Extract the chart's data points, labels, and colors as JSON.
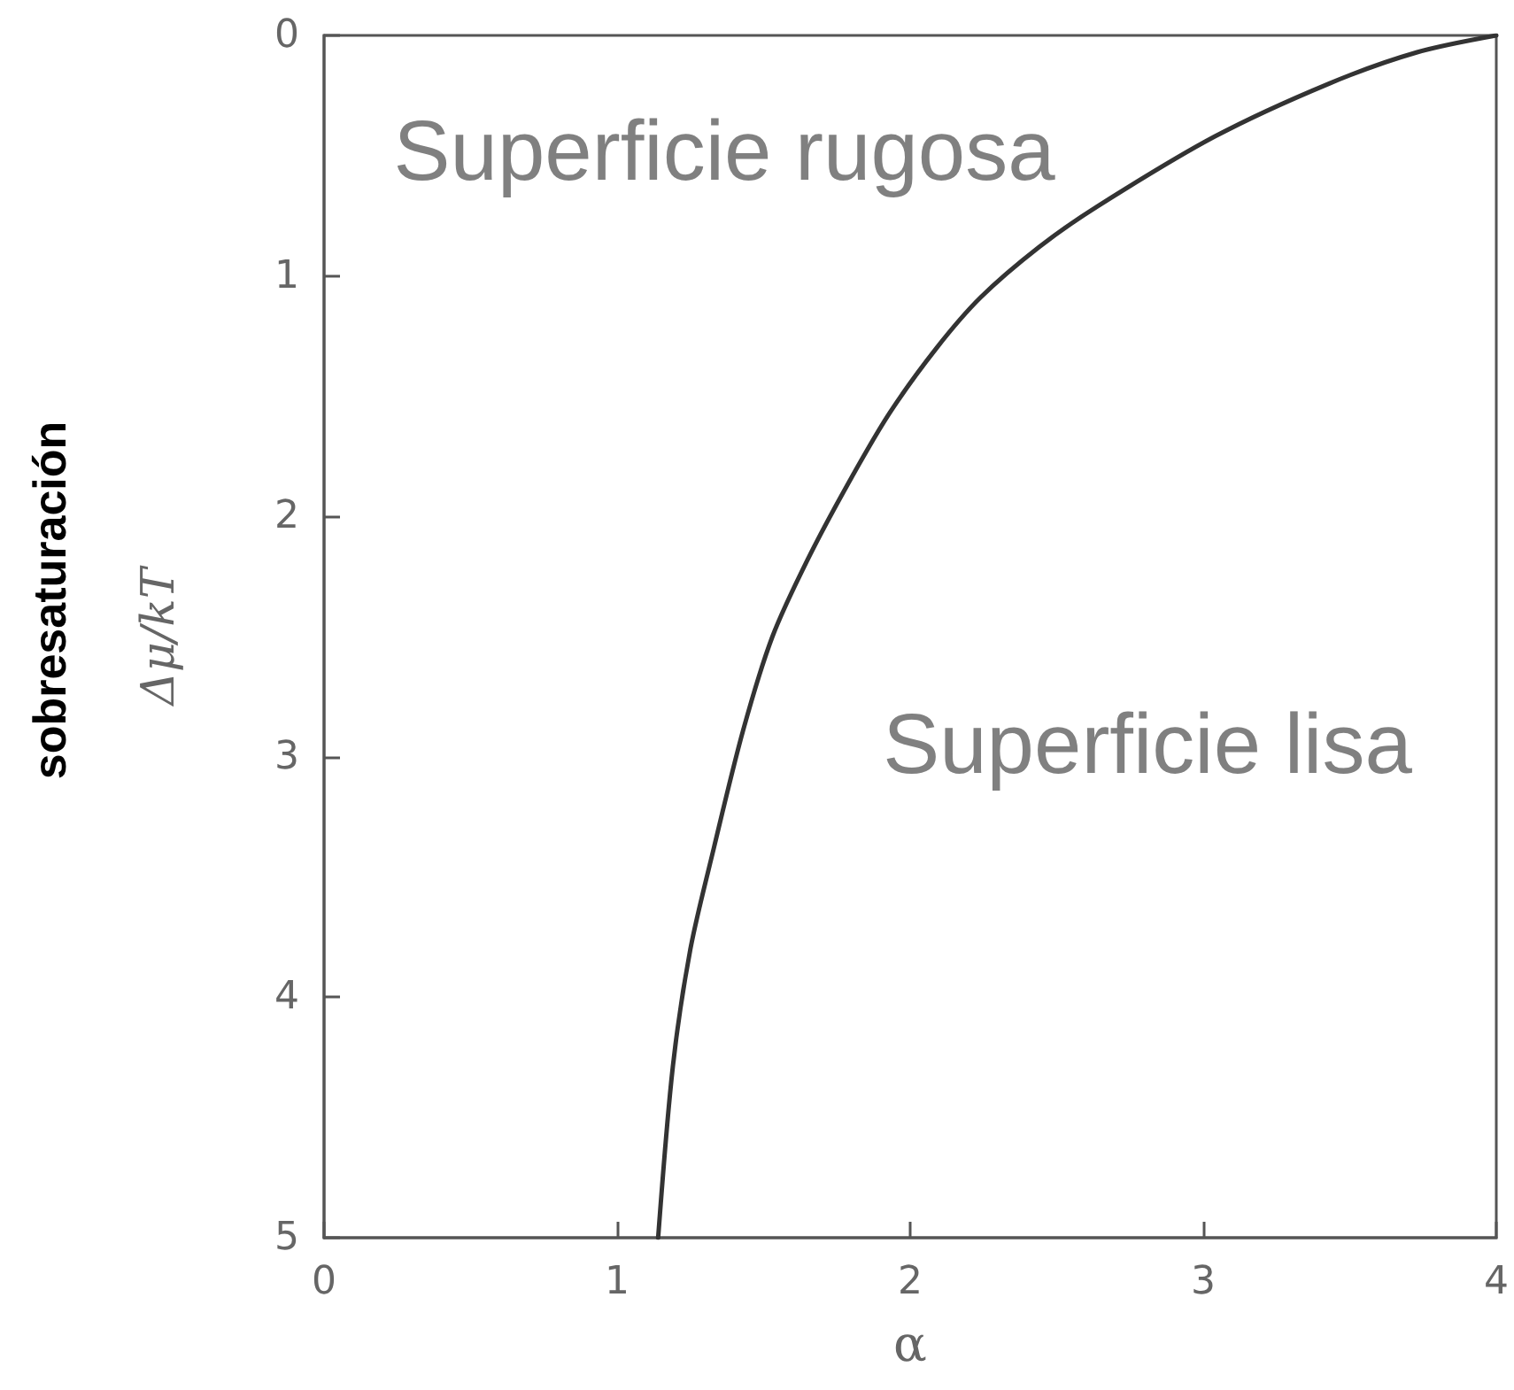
{
  "chart_data": {
    "type": "line",
    "xlabel": "α",
    "ylabel": "Δμ/kT",
    "annotations": [
      "sobresaturación",
      "Superficie rugosa",
      "Superficie lisa"
    ],
    "x": [
      1.14,
      1.19,
      1.25,
      1.33,
      1.43,
      1.53,
      1.65,
      1.79,
      1.93,
      2.09,
      2.24,
      2.44,
      2.64,
      3.04,
      3.43,
      3.73,
      4.0
    ],
    "values": [
      5,
      4.29,
      3.8,
      3.38,
      2.89,
      2.5,
      2.18,
      1.86,
      1.57,
      1.3,
      1.09,
      0.88,
      0.71,
      0.42,
      0.2,
      0.07,
      0
    ],
    "color": "#333333",
    "marker": "none",
    "grid": false,
    "xlim": [
      0,
      4
    ],
    "ylim": [
      5,
      0
    ],
    "xticks": [
      0,
      1,
      2,
      3,
      4
    ],
    "yticks": [
      0,
      1,
      2,
      3,
      4,
      5
    ]
  }
}
